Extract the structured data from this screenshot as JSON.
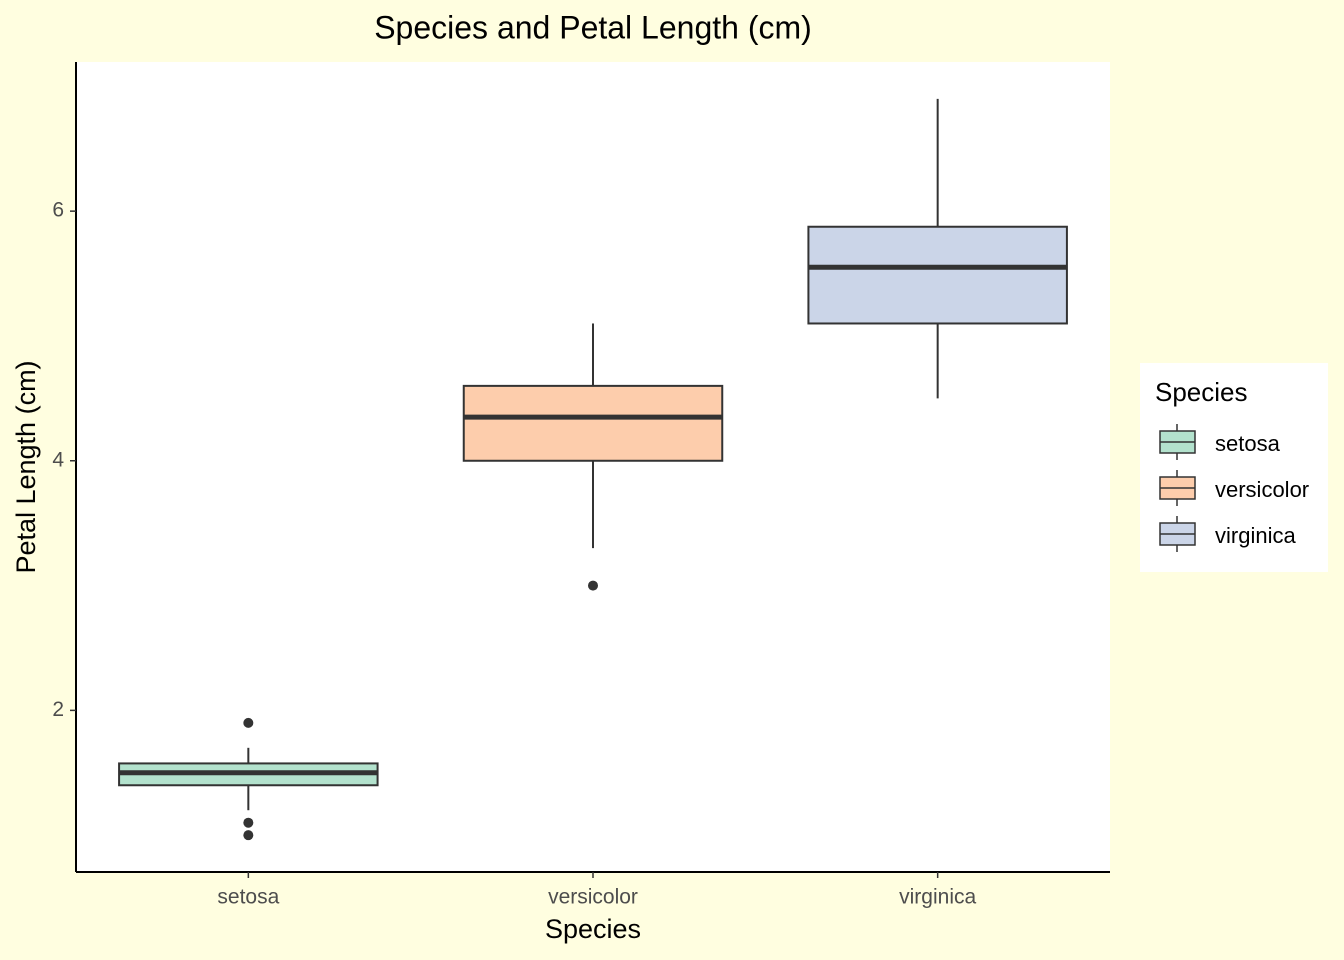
{
  "chart_data": {
    "type": "box",
    "title": "Species and Petal Length (cm)",
    "x_label": "Species",
    "y_label": "Petal Length (cm)",
    "categories": [
      "setosa",
      "versicolor",
      "virginica"
    ],
    "series": [
      {
        "name": "setosa",
        "color": "#b3e2cd",
        "min": 1.2,
        "q1": 1.4,
        "median": 1.5,
        "q3": 1.575,
        "max": 1.7,
        "outliers": [
          1.0,
          1.1,
          1.9
        ]
      },
      {
        "name": "versicolor",
        "color": "#fdcdac",
        "min": 3.3,
        "q1": 4.0,
        "median": 4.35,
        "q3": 4.6,
        "max": 5.1,
        "outliers": [
          3.0
        ]
      },
      {
        "name": "virginica",
        "color": "#cbd5e8",
        "min": 4.5,
        "q1": 5.1,
        "median": 5.55,
        "q3": 5.875,
        "max": 6.9,
        "outliers": []
      }
    ],
    "legend_title": "Species",
    "legend_position": "right",
    "ylim": [
      0.705,
      7.195
    ],
    "yticks": [
      2,
      4,
      6
    ]
  }
}
